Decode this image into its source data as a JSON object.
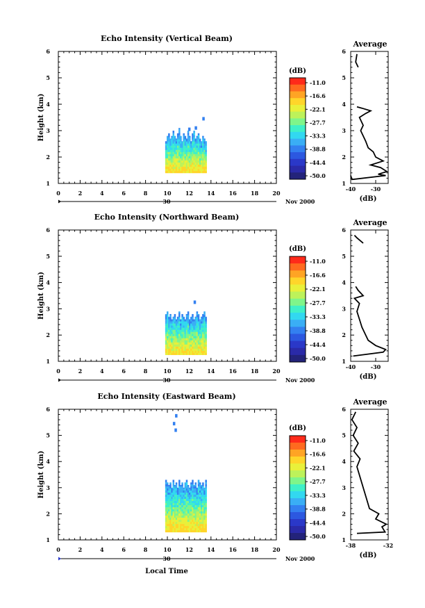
{
  "chart_data": [
    {
      "type": "heatmap",
      "title": "Echo Intensity (Vertical Beam)",
      "ylabel": "Height (km)",
      "xlim": [
        0,
        20
      ],
      "ylim": [
        1,
        6
      ],
      "xticks": [
        "0",
        "2",
        "4",
        "6",
        "8",
        "10",
        "12",
        "14",
        "16",
        "18",
        "20"
      ],
      "yticks": [
        "1",
        "2",
        "3",
        "4",
        "5",
        "6"
      ],
      "date_day": "30",
      "date_label": "Nov 2000",
      "colorbar": {
        "unit": "(dB)",
        "ticks": [
          "-11.0",
          "-16.6",
          "-22.1",
          "-27.7",
          "-33.3",
          "-38.8",
          "-44.4",
          "-50.0"
        ]
      },
      "echo_region": {
        "x_start": 9.8,
        "x_end": 13.6,
        "y_bottom": 1.4,
        "y_top": [
          2.6,
          2.8,
          2.9,
          2.7,
          2.8,
          3.0,
          2.8,
          2.7,
          2.9,
          3.1,
          2.8,
          2.6,
          2.9,
          2.8,
          2.7,
          3.0,
          2.8,
          2.6,
          2.9,
          3.0,
          2.7,
          2.8,
          2.9,
          2.7,
          2.6,
          2.8,
          2.7,
          2.6
        ]
      },
      "isolated_echoes": [
        {
          "x": 13.3,
          "y": 3.45
        },
        {
          "x": 12.6,
          "y": 3.1
        },
        {
          "x": 12.0,
          "y": 3.05
        }
      ],
      "average": {
        "title": "Average",
        "xlabel": "(dB)",
        "xlim": [
          -40,
          -25
        ],
        "xticks": [
          "-40",
          "-30"
        ],
        "profile": [
          [
            -40,
            1.3
          ],
          [
            -39.5,
            1.15
          ],
          [
            -26,
            1.3
          ],
          [
            -29,
            1.35
          ],
          [
            -25.5,
            1.45
          ],
          [
            -28,
            1.6
          ],
          [
            -32,
            1.7
          ],
          [
            -27,
            1.85
          ],
          [
            -30,
            2.0
          ],
          [
            -31,
            2.2
          ],
          [
            -33,
            2.35
          ],
          [
            -34,
            2.6
          ],
          [
            -35,
            2.8
          ],
          [
            -36,
            3.0
          ],
          [
            -35,
            3.2
          ],
          [
            -36.5,
            3.5
          ],
          [
            -34,
            3.65
          ],
          [
            -32,
            3.75
          ],
          [
            -35.5,
            3.85
          ],
          [
            -37.5,
            3.9
          ]
        ],
        "profile_top": [
          [
            -37,
            5.4
          ],
          [
            -38,
            5.6
          ],
          [
            -37.5,
            5.9
          ]
        ]
      }
    },
    {
      "type": "heatmap",
      "title": "Echo Intensity (Northward Beam)",
      "ylabel": "Height (km)",
      "xlim": [
        0,
        20
      ],
      "ylim": [
        1,
        6
      ],
      "xticks": [
        "0",
        "2",
        "4",
        "6",
        "8",
        "10",
        "12",
        "14",
        "16",
        "18",
        "20"
      ],
      "yticks": [
        "1",
        "2",
        "3",
        "4",
        "5",
        "6"
      ],
      "date_day": "30",
      "date_label": "Nov 2000",
      "colorbar": {
        "unit": "(dB)",
        "ticks": [
          "-11.0",
          "-16.6",
          "-22.1",
          "-27.7",
          "-33.3",
          "-38.8",
          "-44.4",
          "-50.0"
        ]
      },
      "echo_region": {
        "x_start": 9.8,
        "x_end": 13.6,
        "y_bottom": 1.25,
        "y_top": [
          2.8,
          2.9,
          2.7,
          2.8,
          2.6,
          2.7,
          2.8,
          2.6,
          2.7,
          2.9,
          2.6,
          2.8,
          2.7,
          2.6,
          2.8,
          2.9,
          2.6,
          2.7,
          2.8,
          2.6,
          2.7,
          2.9,
          2.8,
          2.6,
          2.7,
          2.8,
          2.9,
          2.7
        ]
      },
      "isolated_echoes": [
        {
          "x": 12.5,
          "y": 3.25
        }
      ],
      "average": {
        "title": "Average",
        "xlabel": "(dB)",
        "xlim": [
          -40,
          -25
        ],
        "xticks": [
          "-40",
          "-30"
        ],
        "profile": [
          [
            -39,
            1.2
          ],
          [
            -27,
            1.35
          ],
          [
            -26,
            1.45
          ],
          [
            -30,
            1.6
          ],
          [
            -33,
            1.8
          ],
          [
            -34,
            2.0
          ],
          [
            -35.5,
            2.3
          ],
          [
            -36.5,
            2.6
          ],
          [
            -37.5,
            2.9
          ],
          [
            -36.5,
            3.2
          ],
          [
            -38.5,
            3.4
          ],
          [
            -35,
            3.5
          ],
          [
            -37,
            3.7
          ],
          [
            -38,
            3.85
          ]
        ],
        "profile_top": [
          [
            -35,
            5.5
          ],
          [
            -37.5,
            5.7
          ],
          [
            -38.5,
            5.8
          ]
        ]
      }
    },
    {
      "type": "heatmap",
      "title": "Echo Intensity (Eastward Beam)",
      "ylabel": "Height (km)",
      "xlabel": "Local Time",
      "xlim": [
        0,
        20
      ],
      "ylim": [
        1,
        6
      ],
      "xticks": [
        "0",
        "2",
        "4",
        "6",
        "8",
        "10",
        "12",
        "14",
        "16",
        "18",
        "20"
      ],
      "yticks": [
        "1",
        "2",
        "3",
        "4",
        "5",
        "6"
      ],
      "date_day": "30",
      "date_label": "Nov 2000",
      "colorbar": {
        "unit": "(dB)",
        "ticks": [
          "-11.0",
          "-16.6",
          "-22.1",
          "-27.7",
          "-33.3",
          "-38.8",
          "-44.4",
          "-50.0"
        ]
      },
      "echo_region": {
        "x_start": 9.8,
        "x_end": 13.6,
        "y_bottom": 1.3,
        "y_top": [
          3.3,
          3.2,
          3.1,
          3.2,
          3.0,
          3.3,
          3.1,
          3.2,
          3.0,
          3.3,
          3.1,
          3.2,
          3.0,
          3.2,
          3.3,
          3.1,
          3.0,
          3.2,
          3.3,
          3.1,
          3.2,
          3.0,
          3.3,
          3.2,
          3.1,
          3.2,
          3.0,
          3.3
        ]
      },
      "isolated_echoes": [
        {
          "x": 10.8,
          "y": 5.75
        },
        {
          "x": 10.6,
          "y": 5.45
        },
        {
          "x": 10.75,
          "y": 5.2
        }
      ],
      "average": {
        "title": "Average",
        "xlabel": "(dB)",
        "xlim": [
          -38,
          -32
        ],
        "xticks": [
          "-38",
          "-32"
        ],
        "profile": [
          [
            -37,
            1.25
          ],
          [
            -32.5,
            1.3
          ],
          [
            -33,
            1.5
          ],
          [
            -32.3,
            1.6
          ],
          [
            -34,
            1.8
          ],
          [
            -33.5,
            2.0
          ],
          [
            -35,
            2.2
          ],
          [
            -35.5,
            2.6
          ],
          [
            -36,
            3.0
          ],
          [
            -36.5,
            3.4
          ],
          [
            -37,
            3.8
          ],
          [
            -36.5,
            4.1
          ],
          [
            -37.5,
            4.4
          ],
          [
            -36.8,
            4.7
          ],
          [
            -37.6,
            5.0
          ],
          [
            -37,
            5.3
          ],
          [
            -37.8,
            5.6
          ],
          [
            -37.2,
            5.9
          ]
        ],
        "profile_top": []
      }
    }
  ]
}
